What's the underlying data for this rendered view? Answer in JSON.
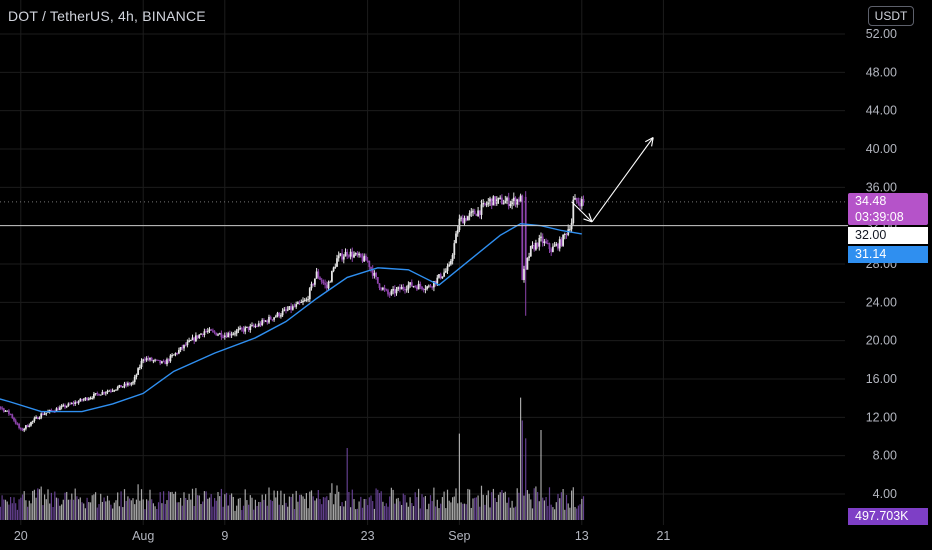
{
  "header": {
    "symbol_title": "DOT / TetherUS, 4h, BINANCE",
    "currency": "USDT"
  },
  "badges": {
    "last_price": "34.48",
    "countdown": "03:39:08",
    "level": "32.00",
    "ma": "31.14",
    "volume": "497.703K"
  },
  "colors": {
    "background": "#000000",
    "grid": "#1c1c1c",
    "up_candle": "#e6e6e6",
    "down_candle": "#8e44ad",
    "ma_line": "#2f8ff0",
    "level_line": "#c9c9c9",
    "axis_text": "#b2b5be",
    "volume_bar": "#9a9a9a",
    "volume_up": "#cfcfcf",
    "volume_down": "#7a4fb0",
    "badge_price": "#b553c9",
    "badge_ma": "#2f8ff0",
    "badge_vol": "#7e3fc6"
  },
  "chart_data": {
    "type": "candlestick",
    "title": "DOT / TetherUS, 4h, BINANCE",
    "y_axis": {
      "ticks": [
        "52.00",
        "48.00",
        "44.00",
        "40.00",
        "36.00",
        "32.00",
        "28.00",
        "24.00",
        "20.00",
        "16.00",
        "12.00",
        "8.00",
        "4.00"
      ],
      "range": [
        1.5,
        54.5
      ],
      "position": "right"
    },
    "x_axis": {
      "ticks": [
        {
          "label": "20",
          "date": "2021-07-20"
        },
        {
          "label": "Aug",
          "date": "2021-08-01"
        },
        {
          "label": "9",
          "date": "2021-08-09"
        },
        {
          "label": "23",
          "date": "2021-08-23"
        },
        {
          "label": "Sep",
          "date": "2021-09-01"
        },
        {
          "label": "13",
          "date": "2021-09-13"
        },
        {
          "label": "21",
          "date": "2021-09-21"
        }
      ],
      "range": [
        "2021-07-16",
        "2021-09-26"
      ]
    },
    "price_path": [
      {
        "date": "2021-07-16",
        "price": 14.5
      },
      {
        "date": "2021-07-19",
        "price": 12.3
      },
      {
        "date": "2021-07-20",
        "price": 10.6
      },
      {
        "date": "2021-07-22",
        "price": 12.3
      },
      {
        "date": "2021-07-25",
        "price": 13.4
      },
      {
        "date": "2021-07-28",
        "price": 14.6
      },
      {
        "date": "2021-07-31",
        "price": 15.6
      },
      {
        "date": "2021-08-01",
        "price": 18.2
      },
      {
        "date": "2021-08-03",
        "price": 17.6
      },
      {
        "date": "2021-08-05",
        "price": 19.4
      },
      {
        "date": "2021-08-07",
        "price": 21.0
      },
      {
        "date": "2021-08-09",
        "price": 20.6
      },
      {
        "date": "2021-08-12",
        "price": 21.5
      },
      {
        "date": "2021-08-14",
        "price": 22.6
      },
      {
        "date": "2021-08-16",
        "price": 23.6
      },
      {
        "date": "2021-08-17",
        "price": 24.2
      },
      {
        "date": "2021-08-18",
        "price": 27.0
      },
      {
        "date": "2021-08-19",
        "price": 25.5
      },
      {
        "date": "2021-08-20",
        "price": 28.5
      },
      {
        "date": "2021-08-21",
        "price": 29.2
      },
      {
        "date": "2021-08-23",
        "price": 28.3
      },
      {
        "date": "2021-08-24",
        "price": 26.0
      },
      {
        "date": "2021-08-25",
        "price": 24.8
      },
      {
        "date": "2021-08-27",
        "price": 25.8
      },
      {
        "date": "2021-08-29",
        "price": 25.6
      },
      {
        "date": "2021-08-31",
        "price": 27.6
      },
      {
        "date": "2021-09-01",
        "price": 32.5
      },
      {
        "date": "2021-09-03",
        "price": 33.6
      },
      {
        "date": "2021-09-04",
        "price": 34.6
      },
      {
        "date": "2021-09-06",
        "price": 34.5
      },
      {
        "date": "2021-09-07",
        "price": 34.8
      },
      {
        "date": "2021-09-07",
        "price": 26.0
      },
      {
        "date": "2021-09-08",
        "price": 29.5
      },
      {
        "date": "2021-09-09",
        "price": 30.5
      },
      {
        "date": "2021-09-10",
        "price": 29.5
      },
      {
        "date": "2021-09-11",
        "price": 30.3
      },
      {
        "date": "2021-09-12",
        "price": 32.4
      },
      {
        "date": "2021-09-12",
        "price": 34.5
      }
    ],
    "moving_average": [
      {
        "date": "2021-07-16",
        "value": 14.5
      },
      {
        "date": "2021-07-19",
        "value": 13.6
      },
      {
        "date": "2021-07-22",
        "value": 12.6
      },
      {
        "date": "2021-07-26",
        "value": 12.6
      },
      {
        "date": "2021-07-29",
        "value": 13.4
      },
      {
        "date": "2021-08-01",
        "value": 14.5
      },
      {
        "date": "2021-08-04",
        "value": 16.8
      },
      {
        "date": "2021-08-08",
        "value": 18.7
      },
      {
        "date": "2021-08-12",
        "value": 20.3
      },
      {
        "date": "2021-08-15",
        "value": 22.0
      },
      {
        "date": "2021-08-18",
        "value": 24.4
      },
      {
        "date": "2021-08-21",
        "value": 26.6
      },
      {
        "date": "2021-08-24",
        "value": 27.6
      },
      {
        "date": "2021-08-27",
        "value": 27.4
      },
      {
        "date": "2021-08-30",
        "value": 25.8
      },
      {
        "date": "2021-09-02",
        "value": 28.4
      },
      {
        "date": "2021-09-05",
        "value": 31.0
      },
      {
        "date": "2021-09-07",
        "value": 32.2
      },
      {
        "date": "2021-09-09",
        "value": 32.0
      },
      {
        "date": "2021-09-11",
        "value": 31.5
      },
      {
        "date": "2021-09-13",
        "value": 31.14
      }
    ],
    "horizontal_levels": [
      {
        "value": 34.48,
        "style": "dotted"
      },
      {
        "value": 32.0,
        "style": "solid"
      }
    ],
    "projection_arrows": [
      {
        "from_date": "2021-09-12",
        "from_value": 34.5,
        "to_date": "2021-09-14",
        "to_value": 32.4
      },
      {
        "from_date": "2021-09-14",
        "from_value": 32.4,
        "to_date": "2021-09-20",
        "to_value": 41.2
      }
    ],
    "volume": {
      "unit": "K",
      "last_value": "497.703K",
      "peaks": [
        {
          "date": "2021-08-21",
          "value": 1.0
        },
        {
          "date": "2021-09-01",
          "value": 1.2
        },
        {
          "date": "2021-09-07",
          "value": 1.7
        },
        {
          "date": "2021-09-09",
          "value": 1.25
        }
      ]
    }
  }
}
